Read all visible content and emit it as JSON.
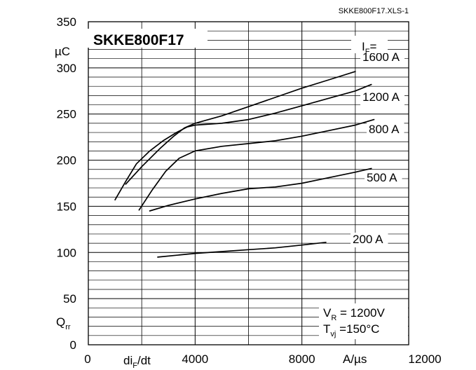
{
  "chart_data": {
    "type": "line",
    "title": "SKKE800F17",
    "file_label": "SKKE800F17.XLS-1",
    "ylabel": {
      "unit_prefix": "µ",
      "unit_rest": "C",
      "symbol_main": "Q",
      "symbol_sub": "rr"
    },
    "xlabel": {
      "pre": "di",
      "sub": "F",
      "post": "/dt",
      "unit": "A/µs"
    },
    "xlim": [
      0,
      12000
    ],
    "ylim": [
      0,
      350
    ],
    "x_ticks": [
      0,
      4000,
      8000,
      12000
    ],
    "x_tick_labels": [
      "0",
      "4000",
      "8000",
      "12000"
    ],
    "y_ticks": [
      0,
      50,
      100,
      150,
      200,
      250,
      300,
      350
    ],
    "y_tick_labels": [
      "0",
      "50",
      "100",
      "150",
      "200",
      "250",
      "300",
      "350"
    ],
    "grid": true,
    "legend_header": {
      "main": "I",
      "sub": "F",
      "suffix": "="
    },
    "conditions": [
      {
        "pre": "V",
        "sub": "R",
        "post": " = 1200V"
      },
      {
        "pre": "T",
        "sub": "vj",
        "post": " =150°C"
      }
    ],
    "series": [
      {
        "name": "1600 A",
        "x": [
          1400,
          2000,
          2700,
          3200,
          3600,
          4000,
          5000,
          6000,
          7000,
          8000,
          9000,
          10000
        ],
        "y": [
          174,
          193,
          213,
          226,
          235,
          240,
          248,
          258,
          268,
          278,
          287,
          296
        ]
      },
      {
        "name": "1200 A",
        "x": [
          1000,
          1400,
          1800,
          2300,
          2800,
          3300,
          3700,
          4000,
          5000,
          6000,
          7000,
          8000,
          9000,
          10000,
          10600
        ],
        "y": [
          157,
          177,
          196,
          210,
          221,
          230,
          236,
          238,
          240,
          244,
          251,
          259,
          267,
          275,
          282
        ]
      },
      {
        "name": "800 A",
        "x": [
          1900,
          2400,
          2900,
          3400,
          4000,
          5000,
          6000,
          7000,
          8000,
          9000,
          10000,
          10700
        ],
        "y": [
          146,
          168,
          188,
          202,
          210,
          215,
          218,
          221,
          226,
          232,
          238,
          244
        ]
      },
      {
        "name": "500 A",
        "x": [
          2300,
          3000,
          4000,
          5000,
          6000,
          7000,
          8000,
          9000,
          10000,
          10600
        ],
        "y": [
          145,
          151,
          158,
          164,
          169,
          171,
          175,
          181,
          187,
          191
        ]
      },
      {
        "name": "200 A",
        "x": [
          2600,
          4000,
          5000,
          6000,
          7000,
          8000,
          8900
        ],
        "y": [
          95,
          99,
          101,
          103,
          105,
          108,
          111
        ]
      }
    ]
  }
}
